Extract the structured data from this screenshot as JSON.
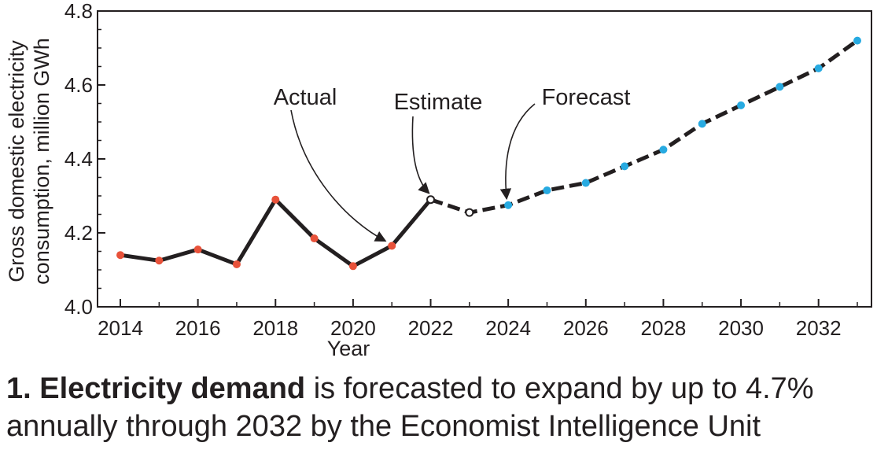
{
  "chart_data": {
    "type": "line",
    "title": "",
    "xlabel": "Year",
    "ylabel_lines": [
      "Gross domestic electricity",
      "consumption, million GWh"
    ],
    "xlim": [
      2013,
      2033.4
    ],
    "ylim": [
      4.0,
      4.8
    ],
    "x_ticks": [
      2014,
      2016,
      2018,
      2020,
      2022,
      2024,
      2026,
      2028,
      2030,
      2032
    ],
    "y_ticks": [
      "4.0",
      "4.2",
      "4.4",
      "4.6",
      "4.8"
    ],
    "grid": false,
    "series": [
      {
        "name": "Actual",
        "style": "solid",
        "marker_color": "#e8523a",
        "points": [
          {
            "x": 2014,
            "y": 4.14
          },
          {
            "x": 2015,
            "y": 4.125
          },
          {
            "x": 2016,
            "y": 4.155
          },
          {
            "x": 2017,
            "y": 4.115
          },
          {
            "x": 2018,
            "y": 4.29
          },
          {
            "x": 2019,
            "y": 4.185
          },
          {
            "x": 2020,
            "y": 4.11
          },
          {
            "x": 2021,
            "y": 4.165
          }
        ]
      },
      {
        "name": "Estimate",
        "style": "dashed",
        "marker_color": "#ffffff",
        "points": [
          {
            "x": 2022,
            "y": 4.29
          },
          {
            "x": 2023,
            "y": 4.255
          }
        ]
      },
      {
        "name": "Forecast",
        "style": "dashed",
        "marker_color": "#27aae1",
        "points": [
          {
            "x": 2024,
            "y": 4.275
          },
          {
            "x": 2025,
            "y": 4.315
          },
          {
            "x": 2026,
            "y": 4.335
          },
          {
            "x": 2027,
            "y": 4.38
          },
          {
            "x": 2028,
            "y": 4.425
          },
          {
            "x": 2029,
            "y": 4.495
          },
          {
            "x": 2030,
            "y": 4.545
          },
          {
            "x": 2031,
            "y": 4.595
          },
          {
            "x": 2032,
            "y": 4.645
          },
          {
            "x": 2033,
            "y": 4.72
          }
        ]
      }
    ],
    "annotations": [
      {
        "text": "Actual",
        "points_to": {
          "x": 2021,
          "y": 4.165
        }
      },
      {
        "text": "Estimate",
        "points_to": {
          "x": 2022,
          "y": 4.29
        }
      },
      {
        "text": "Forecast",
        "points_to": {
          "x": 2024,
          "y": 4.275
        }
      }
    ]
  },
  "caption": {
    "bold": "1. Electricity demand",
    "rest": " is forecasted to expand by up to 4.7% annually through 2032 by the Economist Intelligence Unit"
  }
}
